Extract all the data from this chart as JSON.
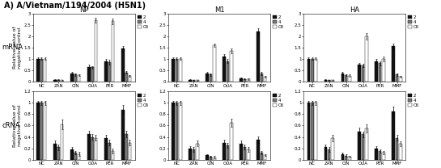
{
  "title": "A) A/Vietnam/1194/2004 (H5N1)",
  "col_labels": [
    "NP",
    "M1",
    "HA"
  ],
  "row_labels": [
    "mRNA",
    "cRNA"
  ],
  "x_labels": [
    "NC",
    "ZAN",
    "CIN",
    "OUA",
    "PER",
    "MMF"
  ],
  "legend_labels": [
    "2",
    "4",
    "C6"
  ],
  "bar_colors": [
    "#111111",
    "#777777",
    "#ffffff"
  ],
  "bar_edgecolor": "#000000",
  "mRNA": {
    "NP": {
      "NC": [
        1.0,
        1.0,
        1.0
      ],
      "ZAN": [
        0.08,
        0.07,
        0.06
      ],
      "CIN": [
        0.35,
        0.3,
        0.28
      ],
      "OUA": [
        0.65,
        0.62,
        2.7
      ],
      "PER": [
        0.9,
        0.85,
        2.65
      ],
      "MMF": [
        1.45,
        0.4,
        0.25
      ]
    },
    "M1": {
      "NC": [
        1.0,
        1.0,
        1.0
      ],
      "ZAN": [
        0.08,
        0.06,
        0.05
      ],
      "CIN": [
        0.35,
        0.3,
        1.6
      ],
      "OUA": [
        1.1,
        0.9,
        1.35
      ],
      "PER": [
        0.15,
        0.12,
        0.1
      ],
      "MMF": [
        2.2,
        0.35,
        0.2
      ]
    },
    "HA": {
      "NC": [
        1.0,
        1.0,
        1.0
      ],
      "ZAN": [
        0.07,
        0.06,
        0.05
      ],
      "CIN": [
        0.35,
        0.28,
        0.25
      ],
      "OUA": [
        0.75,
        0.7,
        2.0
      ],
      "PER": [
        0.9,
        0.8,
        1.0
      ],
      "MMF": [
        1.55,
        0.3,
        0.2
      ]
    }
  },
  "cRNA": {
    "NP": {
      "NC": [
        1.0,
        1.0,
        1.0
      ],
      "ZAN": [
        0.28,
        0.22,
        0.62
      ],
      "CIN": [
        0.18,
        0.12,
        0.1
      ],
      "OUA": [
        0.45,
        0.4,
        0.38
      ],
      "PER": [
        0.38,
        0.3,
        0.15
      ],
      "MMF": [
        0.88,
        0.45,
        0.3
      ]
    },
    "M1": {
      "NC": [
        1.0,
        1.0,
        1.0
      ],
      "ZAN": [
        0.2,
        0.18,
        0.28
      ],
      "CIN": [
        0.08,
        0.05,
        0.04
      ],
      "OUA": [
        0.3,
        0.25,
        0.65
      ],
      "PER": [
        0.28,
        0.22,
        0.18
      ],
      "MMF": [
        0.35,
        0.12,
        0.08
      ]
    },
    "HA": {
      "NC": [
        1.0,
        1.0,
        1.0
      ],
      "ZAN": [
        0.22,
        0.18,
        0.38
      ],
      "CIN": [
        0.1,
        0.07,
        0.05
      ],
      "OUA": [
        0.5,
        0.45,
        0.55
      ],
      "PER": [
        0.2,
        0.15,
        0.12
      ],
      "MMF": [
        0.85,
        0.38,
        0.28
      ]
    }
  },
  "mRNA_ylims": {
    "NP": [
      0,
      3
    ],
    "M1": [
      0,
      3
    ],
    "HA": [
      0,
      3
    ]
  },
  "cRNA_ylims": {
    "NP": [
      0,
      1.2
    ],
    "M1": [
      0,
      1.2
    ],
    "HA": [
      0,
      1.2
    ]
  },
  "mRNA_yticks": {
    "NP": [
      0,
      0.5,
      1.0,
      1.5,
      2.0,
      2.5,
      3.0
    ],
    "M1": [
      0,
      0.5,
      1.0,
      1.5,
      2.0,
      2.5,
      3.0
    ],
    "HA": [
      0,
      0.5,
      1.0,
      1.5,
      2.0,
      2.5,
      3.0
    ]
  },
  "cRNA_yticks": {
    "NP": [
      0,
      0.2,
      0.4,
      0.6,
      0.8,
      1.0,
      1.2
    ],
    "M1": [
      0,
      0.2,
      0.4,
      0.6,
      0.8,
      1.0,
      1.2
    ],
    "HA": [
      0,
      0.2,
      0.4,
      0.6,
      0.8,
      1.0,
      1.2
    ]
  },
  "error_mRNA": {
    "NP": {
      "NC": [
        0.05,
        0.05,
        0.05
      ],
      "ZAN": [
        0.02,
        0.02,
        0.02
      ],
      "CIN": [
        0.06,
        0.05,
        0.05
      ],
      "OUA": [
        0.08,
        0.07,
        0.12
      ],
      "PER": [
        0.1,
        0.09,
        0.12
      ],
      "MMF": [
        0.12,
        0.06,
        0.04
      ]
    },
    "M1": {
      "NC": [
        0.05,
        0.05,
        0.05
      ],
      "ZAN": [
        0.02,
        0.02,
        0.02
      ],
      "CIN": [
        0.06,
        0.05,
        0.08
      ],
      "OUA": [
        0.1,
        0.09,
        0.1
      ],
      "PER": [
        0.03,
        0.03,
        0.03
      ],
      "MMF": [
        0.15,
        0.06,
        0.04
      ]
    },
    "HA": {
      "NC": [
        0.05,
        0.05,
        0.05
      ],
      "ZAN": [
        0.02,
        0.02,
        0.02
      ],
      "CIN": [
        0.06,
        0.05,
        0.05
      ],
      "OUA": [
        0.08,
        0.07,
        0.15
      ],
      "PER": [
        0.1,
        0.08,
        0.1
      ],
      "MMF": [
        0.12,
        0.05,
        0.04
      ]
    }
  },
  "error_cRNA": {
    "NP": {
      "NC": [
        0.04,
        0.04,
        0.04
      ],
      "ZAN": [
        0.06,
        0.05,
        0.08
      ],
      "CIN": [
        0.04,
        0.03,
        0.03
      ],
      "OUA": [
        0.06,
        0.05,
        0.05
      ],
      "PER": [
        0.06,
        0.05,
        0.04
      ],
      "MMF": [
        0.08,
        0.06,
        0.05
      ]
    },
    "M1": {
      "NC": [
        0.04,
        0.04,
        0.04
      ],
      "ZAN": [
        0.04,
        0.04,
        0.05
      ],
      "CIN": [
        0.02,
        0.02,
        0.02
      ],
      "OUA": [
        0.05,
        0.04,
        0.07
      ],
      "PER": [
        0.05,
        0.04,
        0.04
      ],
      "MMF": [
        0.06,
        0.03,
        0.02
      ]
    },
    "HA": {
      "NC": [
        0.04,
        0.04,
        0.04
      ],
      "ZAN": [
        0.05,
        0.04,
        0.06
      ],
      "CIN": [
        0.02,
        0.02,
        0.02
      ],
      "OUA": [
        0.06,
        0.05,
        0.07
      ],
      "PER": [
        0.04,
        0.03,
        0.03
      ],
      "MMF": [
        0.08,
        0.05,
        0.04
      ]
    }
  },
  "ylabel": "Relative value of\nnegative control",
  "title_fontsize": 7,
  "col_fontsize": 6,
  "row_fontsize": 6,
  "tick_fontsize": 4,
  "legend_fontsize": 4
}
